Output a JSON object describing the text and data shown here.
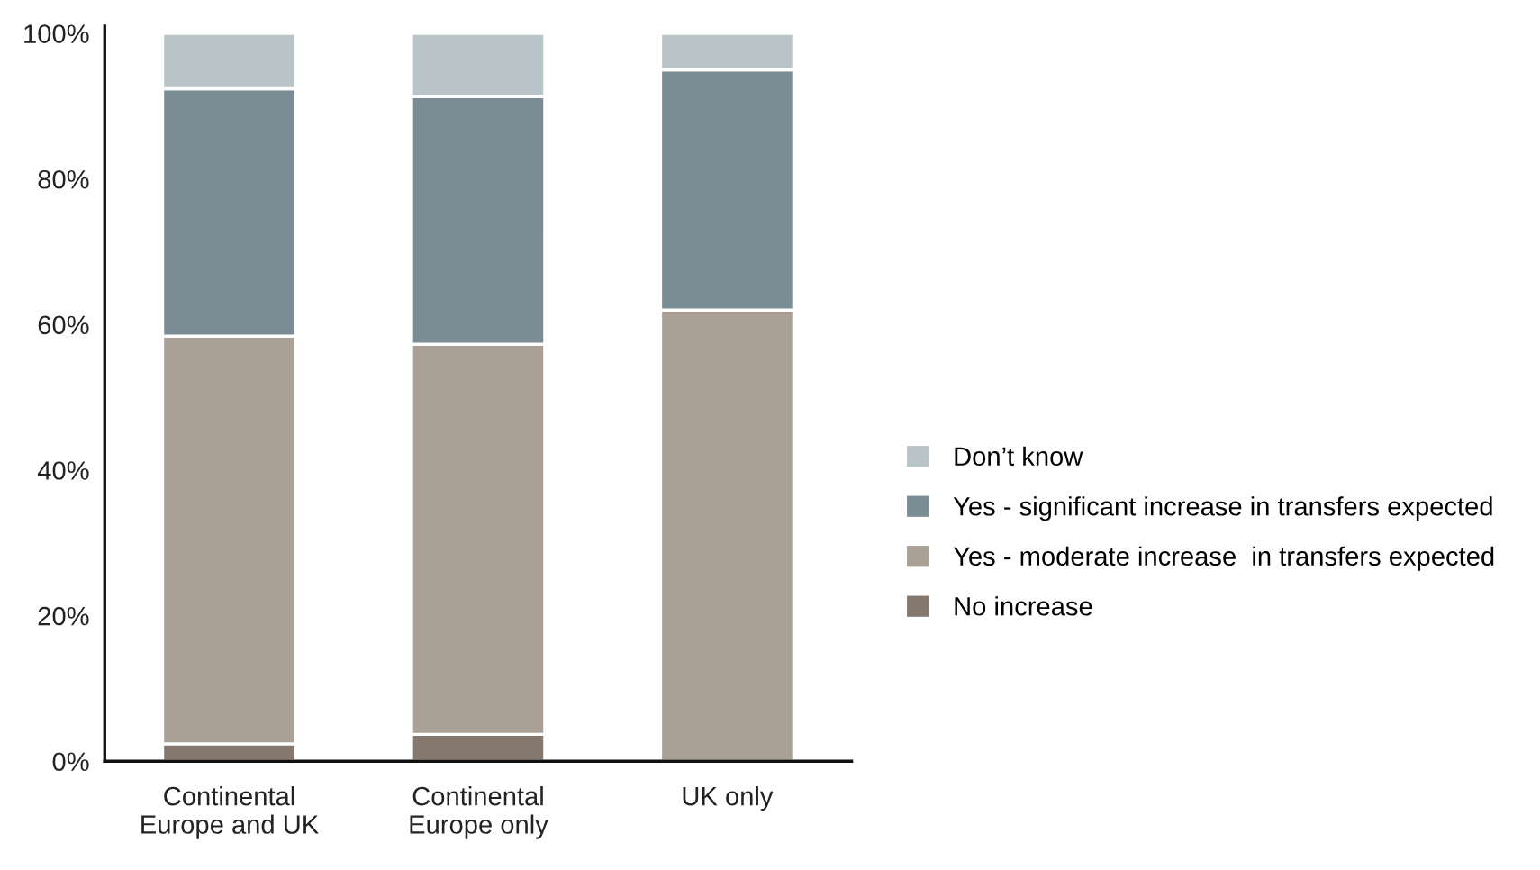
{
  "chart_data": {
    "type": "bar",
    "stacked": true,
    "categories": [
      "Continental\nEurope and UK",
      "Continental\nEurope only",
      "UK only"
    ],
    "series": [
      {
        "name": "No increase",
        "color": "#85786e",
        "values": [
          2.4,
          3.7,
          0
        ]
      },
      {
        "name": "Yes - moderate increase  in transfers expected",
        "color": "#aaa096",
        "values": [
          56,
          53.6,
          62
        ]
      },
      {
        "name": "Yes - significant increase in transfers expected",
        "color": "#7a8c94",
        "values": [
          34,
          34,
          33
        ]
      },
      {
        "name": "Don’t know",
        "color": "#b9c4c8",
        "values": [
          7.6,
          8.7,
          5
        ]
      }
    ],
    "ylim": [
      0,
      101
    ],
    "yticks": [
      {
        "value": 0,
        "label": "0%"
      },
      {
        "value": 20,
        "label": "20%"
      },
      {
        "value": 40,
        "label": "40%"
      },
      {
        "value": 60,
        "label": "60%"
      },
      {
        "value": 80,
        "label": "80%"
      },
      {
        "value": 100,
        "label": "100%"
      }
    ],
    "grid": false,
    "legend": "right"
  }
}
